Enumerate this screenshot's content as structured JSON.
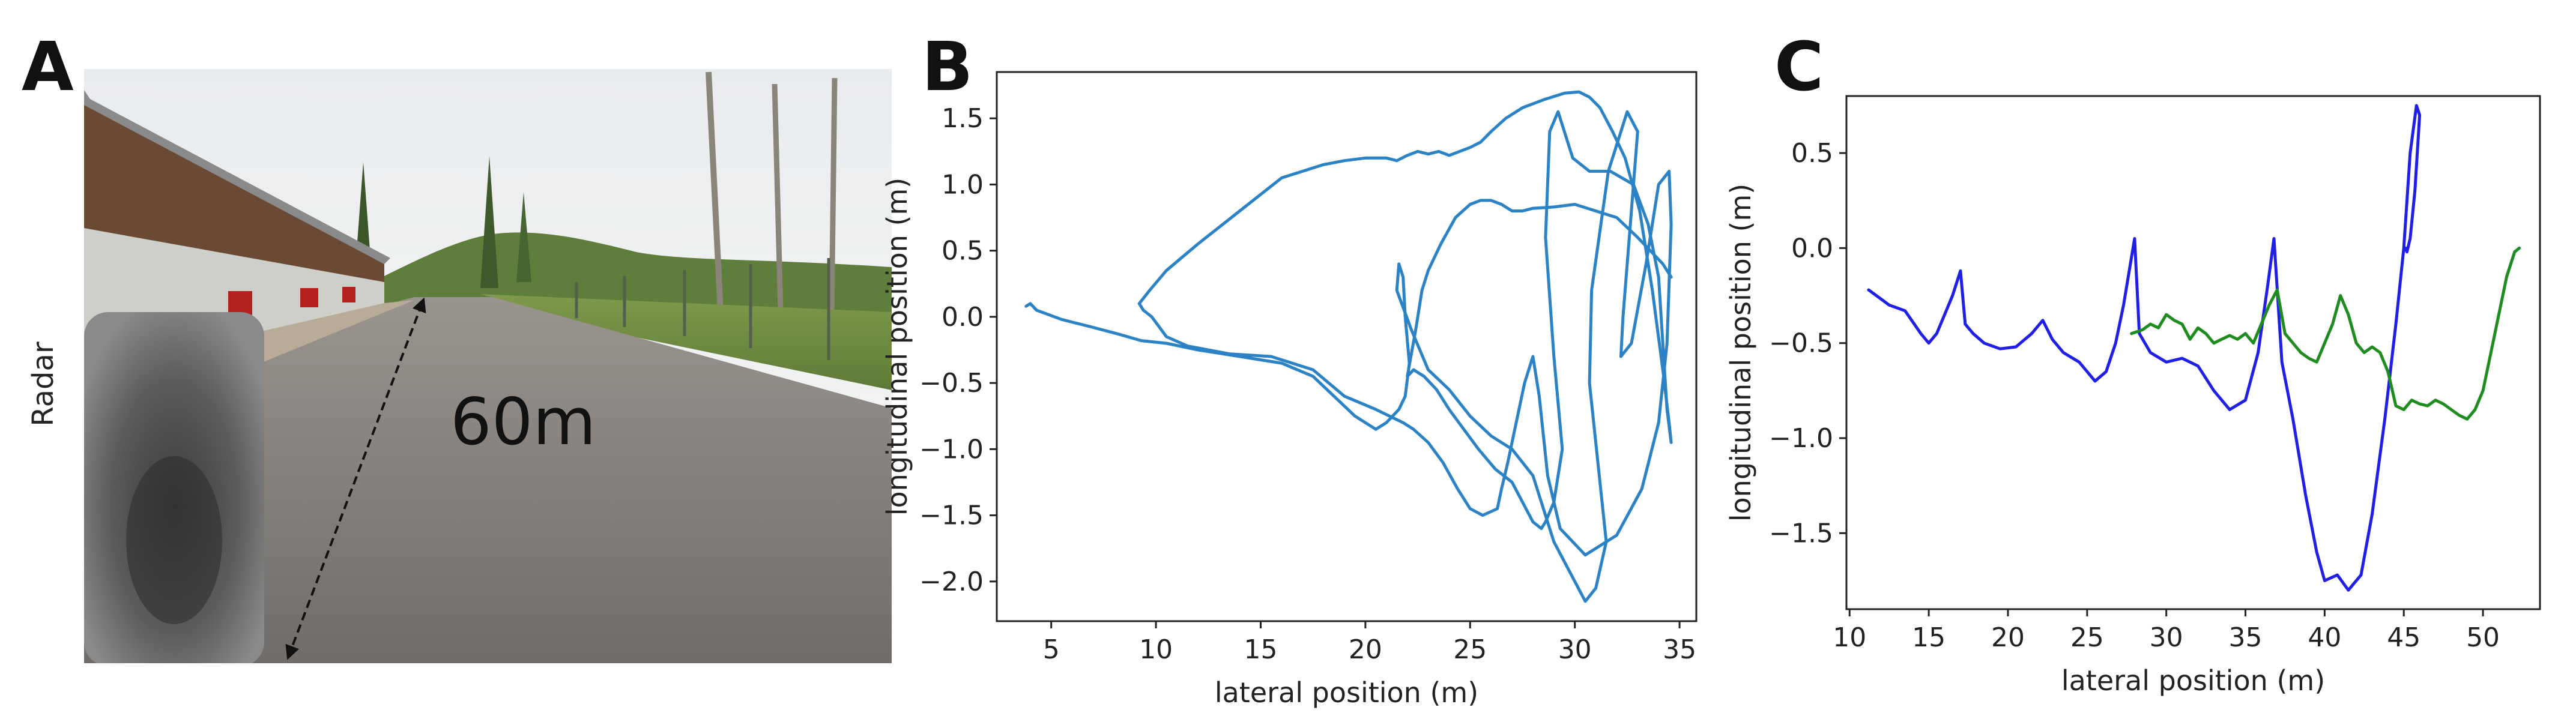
{
  "panels": {
    "a": {
      "letter": "A",
      "side_label": "Radar",
      "distance_label": "60m"
    },
    "b": {
      "letter": "B"
    },
    "c": {
      "letter": "C"
    }
  },
  "colors": {
    "b_line": "#2b83c6",
    "c_blue": "#1f1fe6",
    "c_green": "#1e8c1e"
  },
  "chart_data": [
    {
      "type": "line",
      "panel": "B",
      "xlabel": "lateral position (m)",
      "ylabel": "longitudinal position (m)",
      "xlim": [
        2.4,
        35.8
      ],
      "ylim": [
        -2.3,
        1.85
      ],
      "xticks": [
        5,
        10,
        15,
        20,
        25,
        30,
        35
      ],
      "yticks": [
        -2.0,
        -1.5,
        -1.0,
        -0.5,
        0.0,
        0.5,
        1.0,
        1.5
      ],
      "ytick_labels": [
        "−2.0",
        "−1.5",
        "−1.0",
        "−0.5",
        "0.0",
        "0.5",
        "1.0",
        "1.5"
      ],
      "grid": false,
      "series": [
        {
          "color_key": "b_line",
          "x": [
            3.8,
            4.0,
            4.3,
            5.5,
            7.0,
            8.2,
            9.3,
            10.5,
            12.0,
            14.0,
            16.0,
            17.5,
            18.5,
            19.5,
            20.5,
            21.0,
            21.6,
            21.9,
            22.1,
            21.9,
            21.8,
            21.6,
            21.5,
            22.2,
            23.0,
            24.0,
            25.0,
            26.0,
            27.0,
            28.0,
            29.0,
            30.0,
            30.5,
            31.0,
            31.5,
            30.7,
            30.8,
            31.6,
            32.5,
            33.0,
            32.6,
            32.3,
            32.2,
            32.7,
            33.4,
            34.0,
            34.5,
            34.6,
            34.4,
            34.0,
            33.2,
            32.0,
            30.5,
            29.3,
            28.7,
            28.3,
            28.0,
            27.6,
            27.2,
            26.8,
            26.5,
            26.3,
            25.6,
            25.0,
            24.4,
            23.7,
            23.0,
            22.3,
            21.8,
            20.5,
            19.0,
            17.5,
            15.5,
            13.5,
            11.5,
            10.5,
            9.8,
            9.4,
            9.2,
            9.7,
            10.5,
            12.0,
            14.0,
            16.0,
            18.0,
            19.0,
            20.0,
            21.0,
            21.5,
            22.0,
            22.5,
            23.0,
            23.5,
            24.0,
            24.5,
            25.0,
            25.5,
            26.0,
            26.7,
            27.5,
            28.5,
            29.5,
            30.2,
            30.7,
            31.2,
            31.8,
            32.4,
            33.1,
            33.7,
            34.2,
            34.5,
            34.6,
            34.4,
            34.2,
            34.0,
            33.5,
            32.8,
            31.7,
            30.7,
            29.9,
            29.2,
            28.8,
            28.6,
            29.0,
            29.4,
            29.0,
            28.6,
            28.4,
            28.0,
            27.5,
            27.0,
            26.2,
            25.4,
            24.7,
            24.0,
            23.4,
            22.8,
            22.3,
            22.0,
            22.4,
            22.7,
            23.0,
            23.6,
            24.3,
            25.0,
            25.5,
            26.0,
            26.5,
            27.0,
            27.5,
            28.0,
            29.0,
            30.0,
            31.0,
            32.0,
            33.0,
            33.6,
            34.2,
            34.6
          ],
          "y": [
            0.08,
            0.1,
            0.05,
            -0.02,
            -0.08,
            -0.13,
            -0.18,
            -0.2,
            -0.25,
            -0.3,
            -0.35,
            -0.45,
            -0.6,
            -0.75,
            -0.85,
            -0.8,
            -0.7,
            -0.6,
            -0.35,
            0.0,
            0.3,
            0.4,
            0.2,
            -0.1,
            -0.4,
            -0.55,
            -0.75,
            -0.9,
            -1.0,
            -1.2,
            -1.7,
            -2.0,
            -2.15,
            -2.05,
            -1.7,
            -0.5,
            0.2,
            1.1,
            1.55,
            1.4,
            0.6,
            0.0,
            -0.3,
            -0.2,
            0.4,
            1.0,
            1.1,
            0.7,
            -0.2,
            -0.8,
            -1.3,
            -1.65,
            -1.8,
            -1.6,
            -1.2,
            -0.6,
            -0.3,
            -0.5,
            -0.8,
            -1.1,
            -1.3,
            -1.45,
            -1.5,
            -1.45,
            -1.3,
            -1.1,
            -0.95,
            -0.85,
            -0.8,
            -0.7,
            -0.6,
            -0.4,
            -0.3,
            -0.28,
            -0.22,
            -0.15,
            0.0,
            0.05,
            0.1,
            0.2,
            0.35,
            0.55,
            0.8,
            1.05,
            1.15,
            1.18,
            1.2,
            1.2,
            1.18,
            1.22,
            1.25,
            1.23,
            1.25,
            1.22,
            1.25,
            1.28,
            1.32,
            1.4,
            1.5,
            1.58,
            1.64,
            1.69,
            1.7,
            1.66,
            1.58,
            1.4,
            1.2,
            0.8,
            0.2,
            -0.4,
            -0.8,
            -0.95,
            -0.7,
            -0.2,
            0.3,
            0.7,
            1.0,
            1.1,
            1.1,
            1.2,
            1.55,
            1.4,
            0.6,
            -0.3,
            -1.0,
            -1.4,
            -1.55,
            -1.6,
            -1.55,
            -1.4,
            -1.25,
            -1.15,
            -1.0,
            -0.85,
            -0.7,
            -0.55,
            -0.45,
            -0.4,
            -0.45,
            -0.1,
            0.2,
            0.35,
            0.55,
            0.75,
            0.85,
            0.88,
            0.88,
            0.85,
            0.8,
            0.8,
            0.82,
            0.83,
            0.85,
            0.8,
            0.75,
            0.6,
            0.5,
            0.4,
            0.3
          ]
        }
      ]
    },
    {
      "type": "line",
      "panel": "C",
      "xlabel": "lateral position (m)",
      "ylabel": "longitudinal position (m)",
      "xlim": [
        9.8,
        53.6
      ],
      "ylim": [
        -1.9,
        0.8
      ],
      "xticks": [
        10,
        15,
        20,
        25,
        30,
        35,
        40,
        45,
        50
      ],
      "yticks": [
        -1.5,
        -1.0,
        -0.5,
        0.0,
        0.5
      ],
      "ytick_labels": [
        "−1.5",
        "−1.0",
        "−0.5",
        "0.0",
        "0.5"
      ],
      "grid": false,
      "series": [
        {
          "color_key": "c_blue",
          "x": [
            11.2,
            12.5,
            13.5,
            14.5,
            15.0,
            15.5,
            16.0,
            16.5,
            17.0,
            17.3,
            17.8,
            18.5,
            19.5,
            20.5,
            21.5,
            22.2,
            22.8,
            23.5,
            24.5,
            25.5,
            26.2,
            26.8,
            27.3,
            27.7,
            28.0,
            28.3,
            29.0,
            30.0,
            31.0,
            32.0,
            33.0,
            34.0,
            35.0,
            35.8,
            36.4,
            36.8,
            37.3,
            38.0,
            38.8,
            39.5,
            40.0,
            40.8,
            41.5,
            42.3,
            43.0,
            43.8,
            44.5,
            45.0,
            45.4,
            45.8,
            46.0,
            45.7,
            45.4,
            45.2,
            45.1
          ],
          "y": [
            -0.22,
            -0.3,
            -0.33,
            -0.45,
            -0.5,
            -0.45,
            -0.35,
            -0.25,
            -0.12,
            -0.4,
            -0.45,
            -0.5,
            -0.53,
            -0.52,
            -0.45,
            -0.38,
            -0.48,
            -0.55,
            -0.6,
            -0.7,
            -0.65,
            -0.5,
            -0.3,
            -0.1,
            0.05,
            -0.45,
            -0.55,
            -0.6,
            -0.58,
            -0.62,
            -0.75,
            -0.85,
            -0.8,
            -0.55,
            -0.2,
            0.05,
            -0.6,
            -0.9,
            -1.3,
            -1.6,
            -1.75,
            -1.72,
            -1.8,
            -1.72,
            -1.4,
            -0.9,
            -0.4,
            0.0,
            0.5,
            0.75,
            0.7,
            0.3,
            0.05,
            -0.02,
            0.0
          ]
        },
        {
          "color_key": "c_green",
          "x": [
            27.8,
            28.5,
            29.0,
            29.5,
            30.0,
            30.5,
            31.0,
            31.5,
            32.0,
            32.5,
            33.0,
            33.5,
            34.0,
            34.5,
            35.0,
            35.5,
            36.0,
            36.5,
            37.0,
            37.5,
            38.0,
            38.5,
            39.0,
            39.5,
            40.0,
            40.5,
            41.0,
            41.5,
            42.0,
            42.5,
            43.0,
            43.5,
            44.0,
            44.5,
            45.0,
            45.5,
            46.0,
            46.5,
            47.0,
            47.5,
            48.0,
            48.5,
            49.0,
            49.5,
            50.0,
            50.5,
            51.0,
            51.5,
            52.0,
            52.3
          ],
          "y": [
            -0.45,
            -0.43,
            -0.4,
            -0.42,
            -0.35,
            -0.38,
            -0.4,
            -0.48,
            -0.42,
            -0.45,
            -0.5,
            -0.48,
            -0.46,
            -0.48,
            -0.45,
            -0.5,
            -0.4,
            -0.3,
            -0.22,
            -0.45,
            -0.5,
            -0.55,
            -0.58,
            -0.6,
            -0.5,
            -0.4,
            -0.25,
            -0.35,
            -0.5,
            -0.55,
            -0.52,
            -0.55,
            -0.65,
            -0.83,
            -0.85,
            -0.8,
            -0.82,
            -0.83,
            -0.8,
            -0.82,
            -0.85,
            -0.88,
            -0.9,
            -0.85,
            -0.75,
            -0.55,
            -0.35,
            -0.15,
            -0.02,
            0.0
          ]
        }
      ]
    }
  ]
}
